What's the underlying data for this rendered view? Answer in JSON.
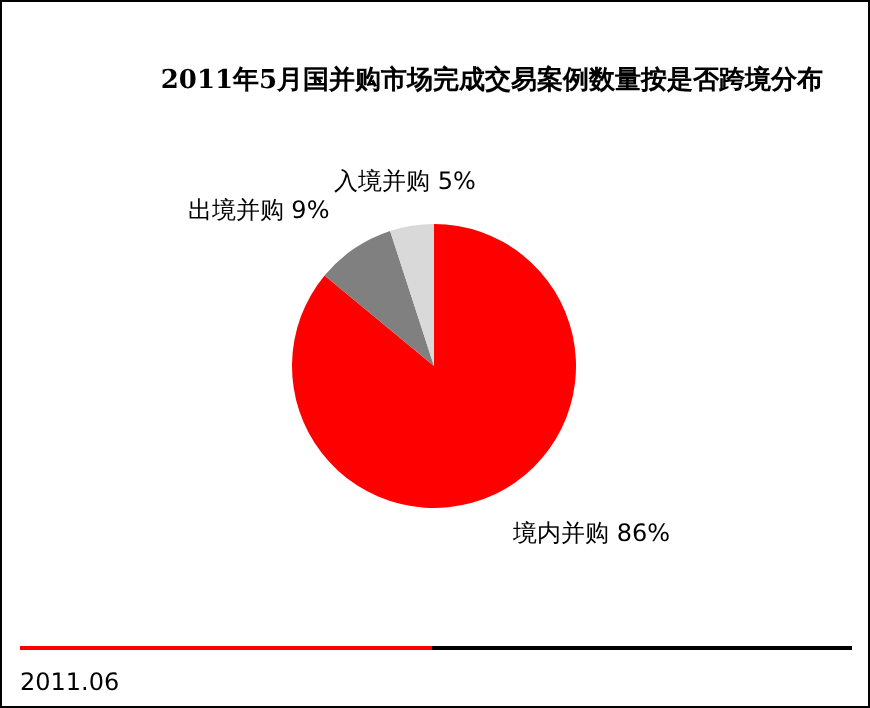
{
  "chart_data": {
    "type": "pie",
    "title": "2011年5月国并购市场完成交易案例数量按是否跨境分布",
    "categories": [
      "境内并购",
      "出境并购",
      "入境并购"
    ],
    "values": [
      86,
      9,
      5
    ],
    "value_labels": [
      "86%",
      "9%",
      "5%"
    ],
    "colors": [
      "#ff0000",
      "#808080",
      "#d9d9d9"
    ],
    "annotations": [
      "2011.06"
    ]
  }
}
